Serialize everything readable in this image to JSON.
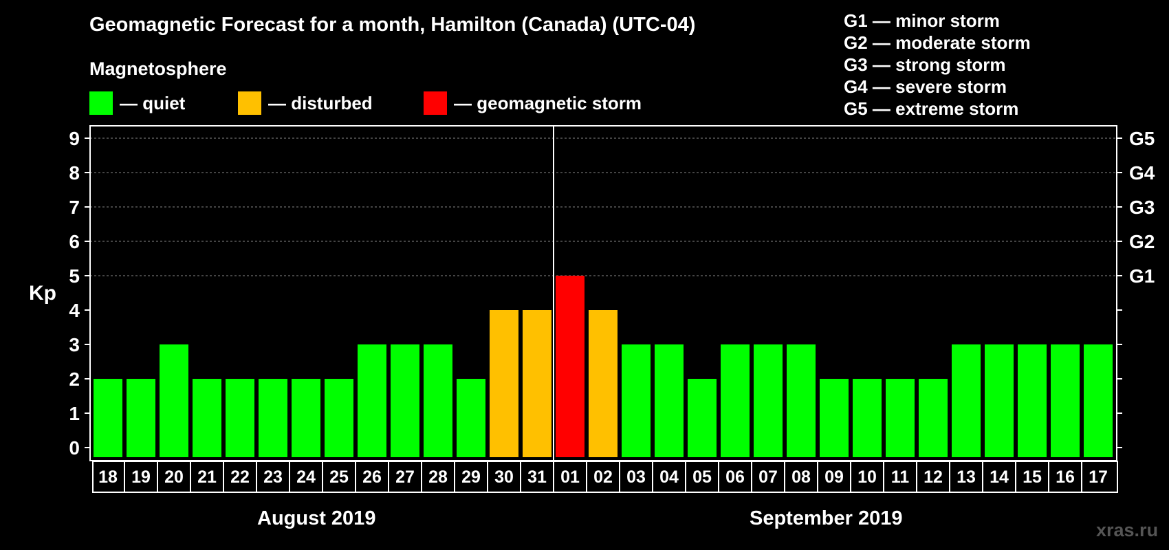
{
  "header": {
    "title": "Geomagnetic Forecast for a month, Hamilton (Canada) (UTC-04)",
    "subtitle": "Magnetosphere"
  },
  "legend": [
    {
      "label": "— quiet",
      "color": "#00ff00"
    },
    {
      "label": "— disturbed",
      "color": "#ffc000"
    },
    {
      "label": "— geomagnetic storm",
      "color": "#ff0000"
    }
  ],
  "storm_scale": [
    "G1 — minor storm",
    "G2 — moderate storm",
    "G3 — strong storm",
    "G4 — severe storm",
    "G5 — extreme storm"
  ],
  "months": {
    "first": "August 2019",
    "second": "September 2019"
  },
  "watermark": "xras.ru",
  "colors": {
    "quiet": "#00ff00",
    "disturbed": "#ffc000",
    "storm": "#ff0000",
    "background": "#000000",
    "axis": "#ffffff"
  },
  "chart_data": {
    "type": "bar",
    "title": "Geomagnetic Forecast for a month, Hamilton (Canada) (UTC-04)",
    "ylabel": "Kp",
    "xlabel": "",
    "ylim": [
      0,
      9
    ],
    "yticks": [
      "0",
      "1",
      "2",
      "3",
      "4",
      "5",
      "6",
      "7",
      "8",
      "9"
    ],
    "right_ticks": [
      {
        "value": 5,
        "label": "G1"
      },
      {
        "value": 6,
        "label": "G2"
      },
      {
        "value": 7,
        "label": "G3"
      },
      {
        "value": 8,
        "label": "G4"
      },
      {
        "value": 9,
        "label": "G5"
      }
    ],
    "grid": "dashed horizontal at Kp 5-9",
    "month_divider_after_index": 13,
    "categories": [
      "18",
      "19",
      "20",
      "21",
      "22",
      "23",
      "24",
      "25",
      "26",
      "27",
      "28",
      "29",
      "30",
      "31",
      "01",
      "02",
      "03",
      "04",
      "05",
      "06",
      "07",
      "08",
      "09",
      "10",
      "11",
      "12",
      "13",
      "14",
      "15",
      "16",
      "17"
    ],
    "values": [
      2,
      2,
      3,
      2,
      2,
      2,
      2,
      2,
      3,
      3,
      3,
      2,
      4,
      4,
      5,
      4,
      3,
      3,
      2,
      3,
      3,
      3,
      2,
      2,
      2,
      2,
      3,
      3,
      3,
      3,
      3
    ],
    "levels": [
      "quiet",
      "quiet",
      "quiet",
      "quiet",
      "quiet",
      "quiet",
      "quiet",
      "quiet",
      "quiet",
      "quiet",
      "quiet",
      "quiet",
      "disturbed",
      "disturbed",
      "storm",
      "disturbed",
      "quiet",
      "quiet",
      "quiet",
      "quiet",
      "quiet",
      "quiet",
      "quiet",
      "quiet",
      "quiet",
      "quiet",
      "quiet",
      "quiet",
      "quiet",
      "quiet",
      "quiet"
    ]
  }
}
